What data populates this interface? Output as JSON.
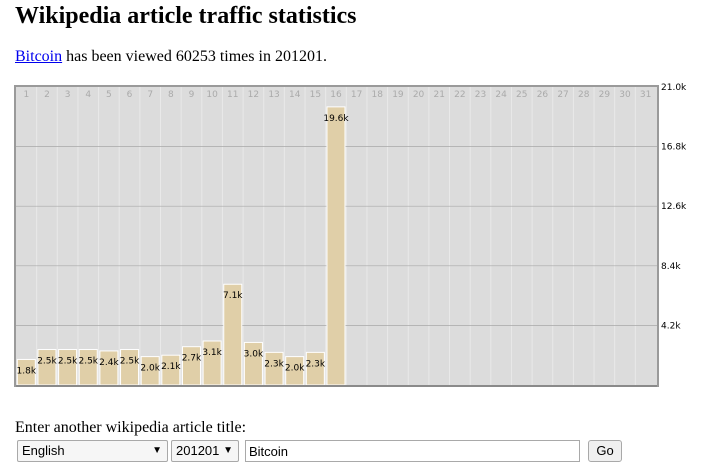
{
  "page": {
    "title": "Wikipedia article traffic statistics",
    "summary": {
      "article_link": "Bitcoin",
      "text_before_count": " has been viewed ",
      "count": "60253",
      "text_before_month": " times in ",
      "month": "201201",
      "text_end": "."
    }
  },
  "chart_data": {
    "type": "bar",
    "categories": [
      "1",
      "2",
      "3",
      "4",
      "5",
      "6",
      "7",
      "8",
      "9",
      "10",
      "11",
      "12",
      "13",
      "14",
      "15",
      "16",
      "17",
      "18",
      "19",
      "20",
      "21",
      "22",
      "23",
      "24",
      "25",
      "26",
      "27",
      "28",
      "29",
      "30",
      "31"
    ],
    "values": [
      1.8,
      2.5,
      2.5,
      2.5,
      2.4,
      2.5,
      2.0,
      2.1,
      2.7,
      3.1,
      7.1,
      3.0,
      2.3,
      2.0,
      2.3,
      19.6,
      null,
      null,
      null,
      null,
      null,
      null,
      null,
      null,
      null,
      null,
      null,
      null,
      null,
      null,
      null
    ],
    "value_labels": [
      "1.8k",
      "2.5k",
      "2.5k",
      "2.5k",
      "2.4k",
      "2.5k",
      "2.0k",
      "2.1k",
      "2.7k",
      "3.1k",
      "7.1k",
      "3.0k",
      "2.3k",
      "2.0k",
      "2.3k",
      "19.6k",
      "",
      "",
      "",
      "",
      "",
      "",
      "",
      "",
      "",
      "",
      "",
      "",
      "",
      "",
      ""
    ],
    "unit": "k",
    "ylim": [
      0,
      21.0
    ],
    "yticks": [
      4.2,
      8.4,
      12.6,
      16.8,
      21.0
    ],
    "ytick_labels": [
      "4.2k",
      "8.4k",
      "12.6k",
      "16.8k",
      "21.0k"
    ],
    "grid": true,
    "colors": {
      "bar": "#e0cfa8",
      "bar_border": "#ffffff",
      "plot_bg": "#dcdcdc",
      "day_label": "#aaaaaa"
    }
  },
  "form": {
    "label": "Enter another wikipedia article title:",
    "language": {
      "value": "English"
    },
    "month": {
      "value": "201201"
    },
    "title_input": {
      "value": "Bitcoin"
    },
    "go_label": "Go"
  }
}
